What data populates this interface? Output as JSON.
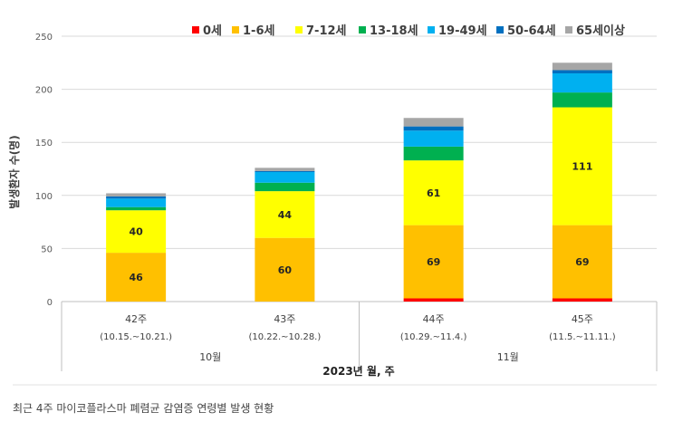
{
  "chart_data": {
    "type": "bar",
    "stacked": true,
    "title": "",
    "ylabel": "발생환자 수(명)",
    "xlabel": "2023년 월, 주",
    "ylim": [
      0,
      250
    ],
    "yticks": [
      0,
      50,
      100,
      150,
      200,
      250
    ],
    "grid": true,
    "legend_position": "top-right",
    "categories": [
      {
        "week": "42주",
        "range": "(10.15.~10.21.)"
      },
      {
        "week": "43주",
        "range": "(10.22.~10.28.)"
      },
      {
        "week": "44주",
        "range": "(10.29.~11.4.)"
      },
      {
        "week": "45주",
        "range": "(11.5.~11.11.)"
      }
    ],
    "months": [
      {
        "label": "10월",
        "categories": [
          0,
          1
        ]
      },
      {
        "label": "11월",
        "categories": [
          2,
          3
        ]
      }
    ],
    "series": [
      {
        "name": "0세",
        "color": "#ff0000",
        "values": [
          0,
          0,
          3,
          3
        ],
        "labels": [
          null,
          null,
          null,
          null
        ]
      },
      {
        "name": "1-6세",
        "color": "#ffc000",
        "values": [
          46,
          60,
          69,
          69
        ],
        "labels": [
          "46",
          "60",
          "69",
          "69"
        ]
      },
      {
        "name": "7-12세",
        "color": "#ffff00",
        "values": [
          40,
          44,
          61,
          111
        ],
        "labels": [
          "40",
          "44",
          "61",
          "111"
        ]
      },
      {
        "name": "13-18세",
        "color": "#00b050",
        "values": [
          3,
          8,
          13,
          14
        ],
        "labels": [
          null,
          null,
          null,
          null
        ]
      },
      {
        "name": "19-49세",
        "color": "#00b0f0",
        "values": [
          8,
          10,
          15,
          18
        ],
        "labels": [
          null,
          null,
          null,
          null
        ]
      },
      {
        "name": "50-64세",
        "color": "#0070c0",
        "values": [
          2,
          1,
          4,
          3
        ],
        "labels": [
          null,
          null,
          null,
          null
        ]
      },
      {
        "name": "65세이상",
        "color": "#a6a6a6",
        "values": [
          3,
          3,
          8,
          7
        ],
        "labels": [
          null,
          null,
          null,
          null
        ]
      }
    ]
  },
  "caption": "최근 4주 마이코플라스마 폐렴균 감염증 연령별 발생 현황"
}
